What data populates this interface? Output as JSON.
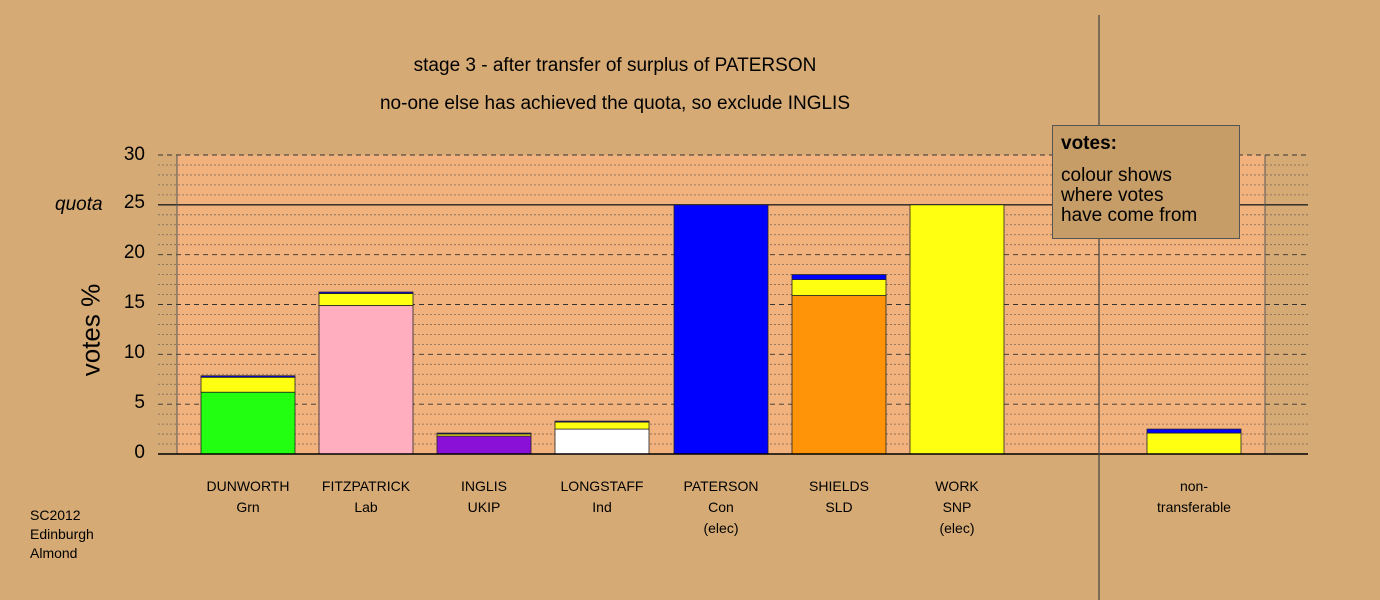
{
  "titles": {
    "line1": "stage 3 - after transfer of surplus of PATERSON",
    "line2": "no-one else has achieved the quota, so exclude INGLIS"
  },
  "legend": {
    "heading": "votes:",
    "line1": "colour shows",
    "line2": "where votes",
    "line3": "have come from"
  },
  "footer": {
    "line1": "SC2012",
    "line2": "Edinburgh",
    "line3": "Almond"
  },
  "candidates": [
    {
      "name": "DUNWORTH",
      "party": "Grn",
      "status": ""
    },
    {
      "name": "FITZPATRICK",
      "party": "Lab",
      "status": ""
    },
    {
      "name": "INGLIS",
      "party": "UKIP",
      "status": ""
    },
    {
      "name": "LONGSTAFF",
      "party": "Ind",
      "status": ""
    },
    {
      "name": "PATERSON",
      "party": "Con",
      "status": "(elec)"
    },
    {
      "name": "SHIELDS",
      "party": "SLD",
      "status": ""
    },
    {
      "name": "WORK",
      "party": "SNP",
      "status": "(elec)"
    }
  ],
  "nontransferable": {
    "line1": "non-",
    "line2": "transferable"
  },
  "chart_data": {
    "type": "bar",
    "stacked": true,
    "ylabel": "votes %",
    "ylim": [
      0,
      30
    ],
    "yticks": [
      "0",
      "5",
      "10",
      "15",
      "20",
      "25",
      "30"
    ],
    "quota": 25,
    "quota_label": "quota",
    "colors": {
      "green": "#22ff11",
      "pink": "#ffaec0",
      "purple": "#8a10d8",
      "white": "#ffffff",
      "blue": "#0000ff",
      "orange": "#ff9408",
      "yellow": "#ffff11",
      "background": "#d5aa75",
      "plot_background": "#f2b27e"
    },
    "categories": [
      "DUNWORTH",
      "FITZPATRICK",
      "INGLIS",
      "LONGSTAFF",
      "PATERSON",
      "SHIELDS",
      "WORK",
      "non-transferable"
    ],
    "bars": [
      {
        "category": "DUNWORTH",
        "segments": [
          {
            "color": "green",
            "value": 6.2
          },
          {
            "color": "yellow",
            "value": 1.5
          },
          {
            "color": "blue",
            "value": 0.15
          }
        ]
      },
      {
        "category": "FITZPATRICK",
        "segments": [
          {
            "color": "pink",
            "value": 14.9
          },
          {
            "color": "yellow",
            "value": 1.2
          },
          {
            "color": "blue",
            "value": 0.15
          }
        ]
      },
      {
        "category": "INGLIS",
        "segments": [
          {
            "color": "purple",
            "value": 1.8
          },
          {
            "color": "yellow",
            "value": 0.2
          },
          {
            "color": "blue",
            "value": 0.1
          }
        ]
      },
      {
        "category": "LONGSTAFF",
        "segments": [
          {
            "color": "white",
            "value": 2.5
          },
          {
            "color": "yellow",
            "value": 0.7
          },
          {
            "color": "blue",
            "value": 0.1
          }
        ]
      },
      {
        "category": "PATERSON",
        "segments": [
          {
            "color": "blue",
            "value": 25.0
          }
        ]
      },
      {
        "category": "SHIELDS",
        "segments": [
          {
            "color": "orange",
            "value": 15.9
          },
          {
            "color": "yellow",
            "value": 1.6
          },
          {
            "color": "blue",
            "value": 0.5
          }
        ]
      },
      {
        "category": "WORK",
        "segments": [
          {
            "color": "yellow",
            "value": 25.0
          }
        ]
      },
      {
        "category": "non-transferable",
        "segments": [
          {
            "color": "yellow",
            "value": 2.1
          },
          {
            "color": "blue",
            "value": 0.4
          }
        ]
      }
    ]
  }
}
